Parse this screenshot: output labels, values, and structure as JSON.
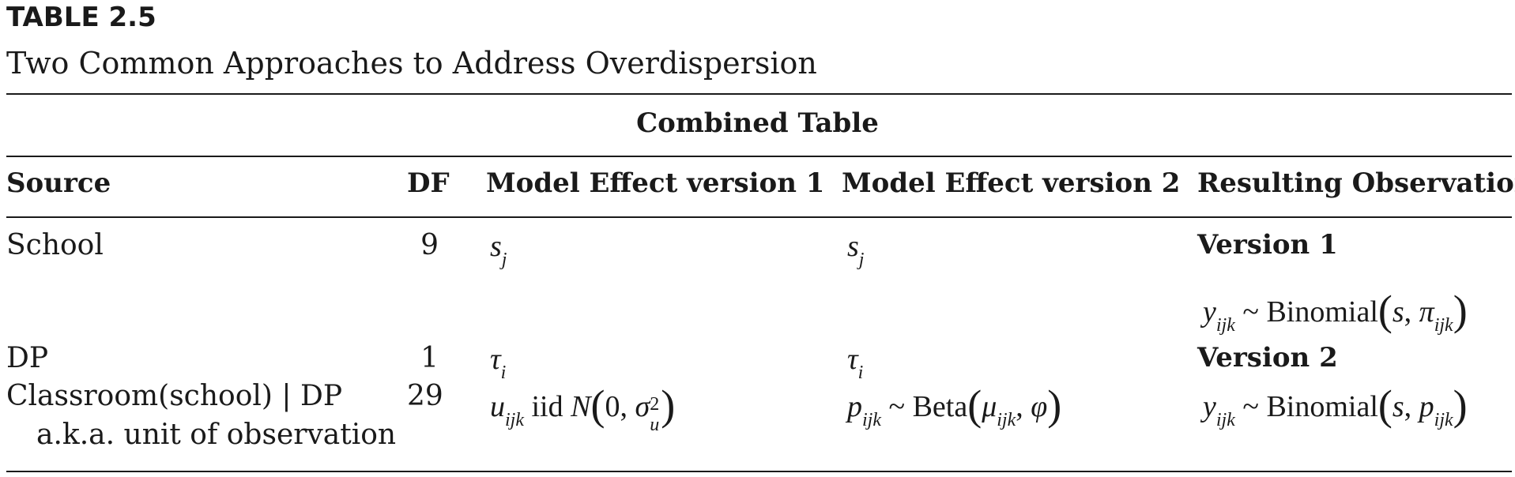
{
  "table_number": "TABLE 2.5",
  "caption": "Two Common Approaches to Address Overdispersion",
  "spanner": "Combined Table",
  "columns": [
    "Source",
    "DF",
    "Model Effect version 1",
    "Model Effect version 2",
    "Resulting Observation"
  ],
  "rows": [
    {
      "source": "School",
      "df": "9",
      "v1": "s_j",
      "v2": "s_j"
    },
    {
      "source": "DP",
      "df": "1",
      "v1": "τ_i",
      "v2": "τ_i"
    },
    {
      "source": "Classroom(school) | DP",
      "source_note": "a.k.a. unit of observation",
      "df": "29",
      "v1": "u_ijk iid N(0, σ_u^2)",
      "v2": "p_ijk ~ Beta(μ_ijk, φ)"
    }
  ],
  "resulting": {
    "version1_label": "Version 1",
    "version1_formula": "y_ijk ~ Binomial(s, π_ijk)",
    "version2_label": "Version 2",
    "version2_formula": "y_ijk ~ Binomial(s, p_ijk)"
  },
  "math": {
    "s": "s",
    "j": "j",
    "tau": "τ",
    "i": "i",
    "u": "u",
    "ijk": "ijk",
    "iid": "iid",
    "N": "N",
    "zero": "0",
    "comma": ",",
    "sigma": "σ",
    "two": "2",
    "p": "p",
    "tilde": "~",
    "beta": "Beta",
    "mu": "μ",
    "phi": "φ",
    "y": "y",
    "binomial": "Binomial",
    "pi": "π",
    "lparen": "(",
    "rparen": ")"
  }
}
